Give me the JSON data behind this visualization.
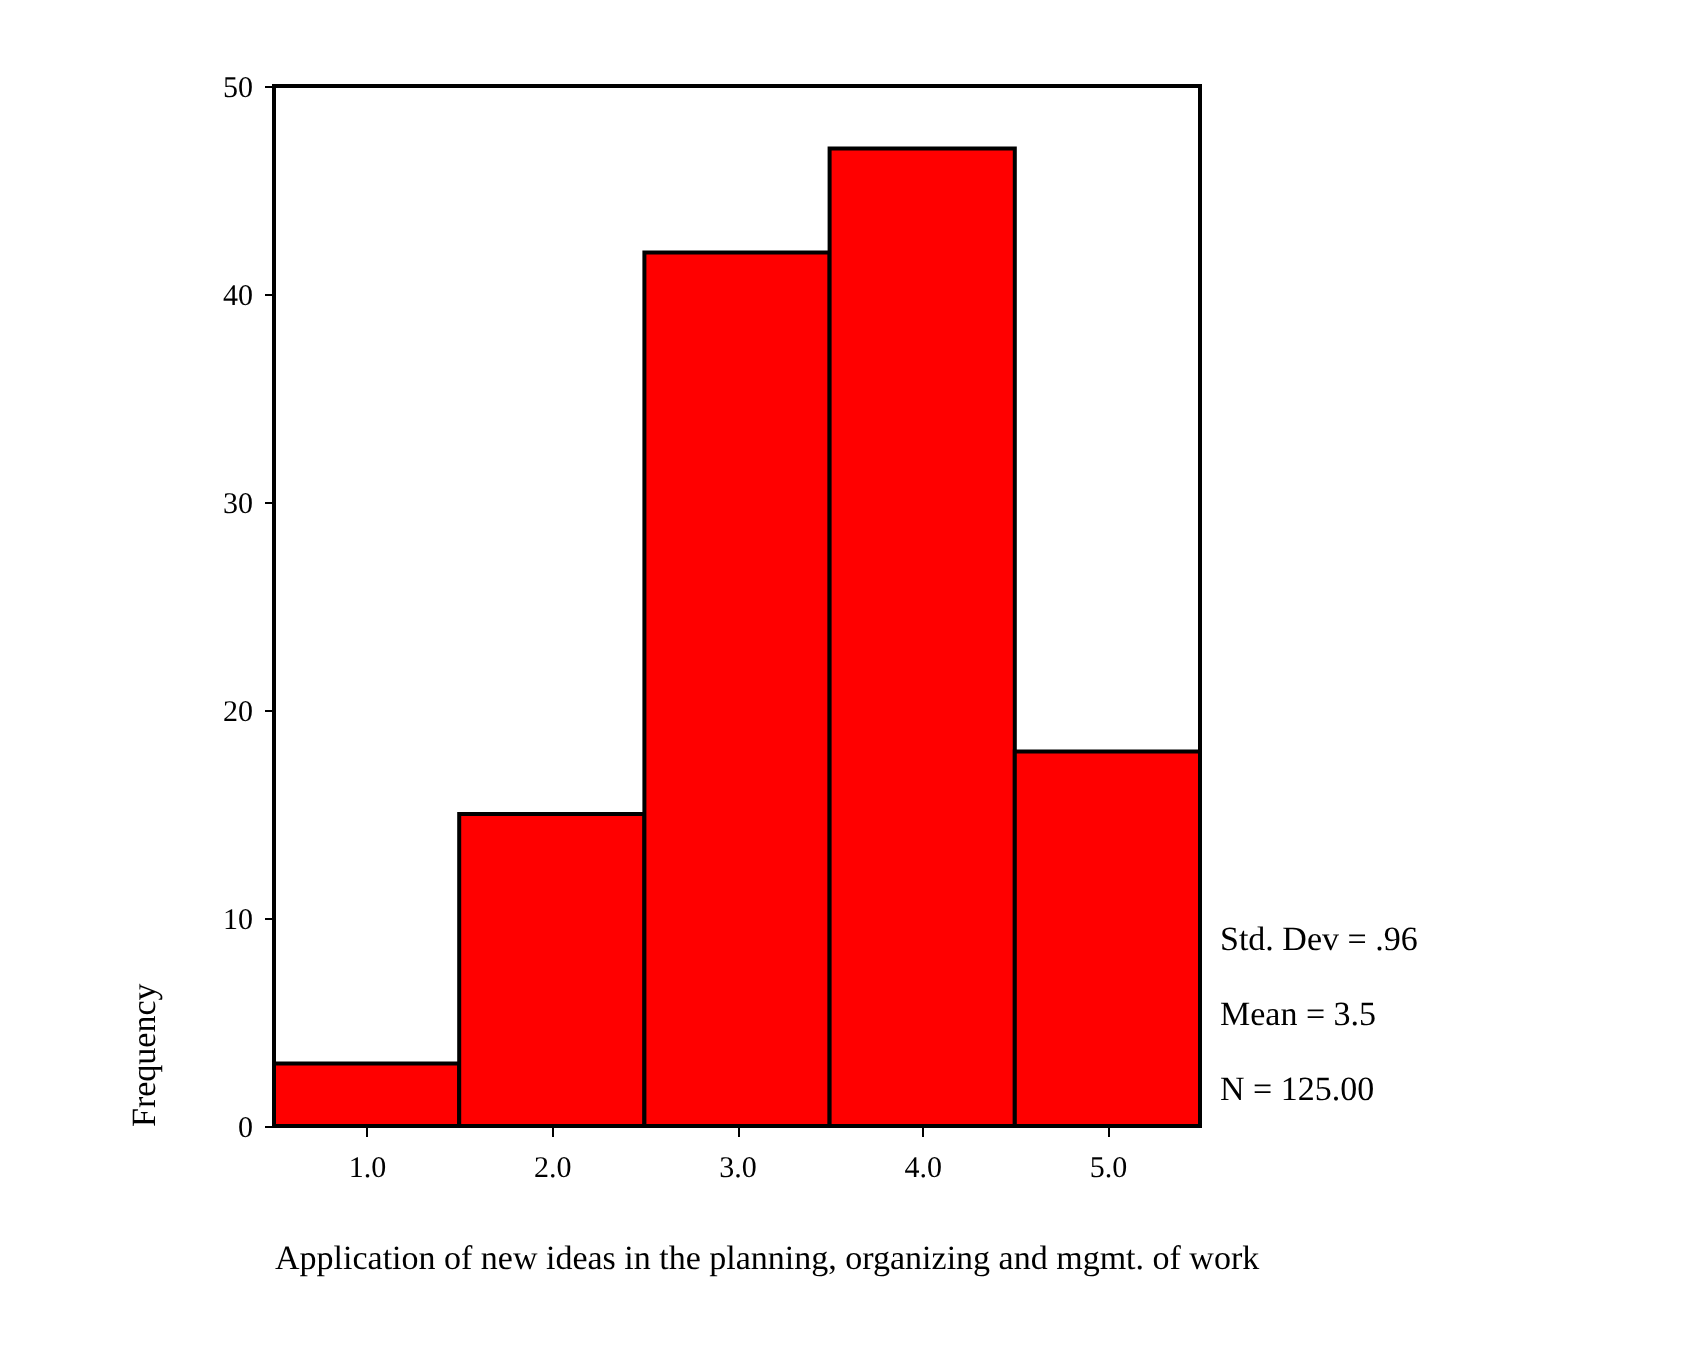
{
  "chart_data": {
    "type": "histogram",
    "xlabel": "Application of new ideas in the planning, organizing and mgmt. of work",
    "ylabel": "Frequency",
    "bins": [
      0.5,
      1.5,
      2.5,
      3.5,
      4.5,
      5.5
    ],
    "values": [
      3,
      15,
      42,
      47,
      18
    ],
    "color": "#ff0000",
    "xlim": [
      0.5,
      5.5
    ],
    "xticks": [
      {
        "value": 1,
        "label": "1.0"
      },
      {
        "value": 2,
        "label": "2.0"
      },
      {
        "value": 3,
        "label": "3.0"
      },
      {
        "value": 4,
        "label": "4.0"
      },
      {
        "value": 5,
        "label": "5.0"
      }
    ],
    "ylim": [
      0,
      50
    ],
    "yticks": [
      0,
      10,
      20,
      30,
      40,
      50
    ],
    "grid": false,
    "annotations": [
      "Std. Dev = .96",
      "Mean = 3.5",
      "N = 125.00"
    ]
  }
}
